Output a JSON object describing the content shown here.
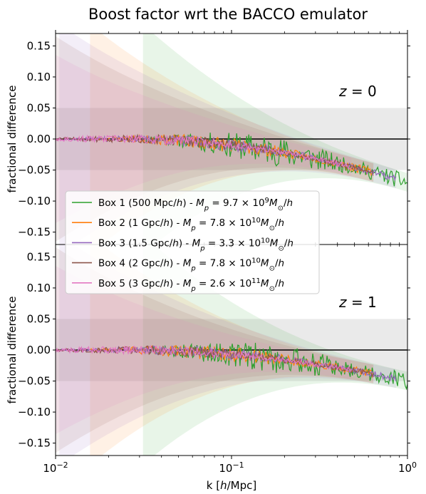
{
  "chart_data": {
    "type": "line",
    "title": "Boost factor wrt the BACCO emulator",
    "xlabel": "k [h/Mpc]",
    "xscale": "log",
    "xlim": [
      0.01,
      1.0
    ],
    "x_ticks": [
      {
        "value": 0.01,
        "base": "10",
        "exp": "−2"
      },
      {
        "value": 0.1,
        "base": "10",
        "exp": "−1"
      },
      {
        "value": 1.0,
        "base": "10",
        "exp": "0"
      }
    ],
    "grid": false,
    "legend": {
      "placement": "center-left, spanning both panels"
    },
    "series": [
      {
        "name": "Box 1 (500 Mpc/h) - M_p = 9.7 × 10^9 M_⊙/h",
        "label_plain": "Box 1 (500 Mpc/",
        "label_unit": "h",
        "label_tail": ") - ",
        "mass_mantissa": "9.7",
        "mass_exp": "9",
        "color": "#2ca02c",
        "kmin": 0.0314,
        "kmax": 1.0,
        "noise": 0.028,
        "seed": 11
      },
      {
        "name": "Box 2 (1 Gpc/h) - M_p = 7.8 × 10^10 M_⊙/h",
        "label_plain": "Box 2 (1 Gpc/",
        "label_unit": "h",
        "label_tail": ") - ",
        "mass_mantissa": "7.8",
        "mass_exp": "10",
        "color": "#ff7f0e",
        "kmin": 0.0157,
        "kmax": 0.64,
        "noise": 0.014,
        "seed": 23
      },
      {
        "name": "Box 3 (1.5 Gpc/h) - M_p = 3.3 × 10^10 M_⊙/h",
        "label_plain": "Box 3 (1.5 Gpc/",
        "label_unit": "h",
        "label_tail": ") - ",
        "mass_mantissa": "3.3",
        "mass_exp": "10",
        "color": "#9467bd",
        "kmin": 0.0105,
        "kmax": 0.86,
        "noise": 0.011,
        "seed": 37
      },
      {
        "name": "Box 4 (2 Gpc/h) - M_p = 7.8 × 10^10 M_⊙/h",
        "label_plain": "Box 4 (2 Gpc/",
        "label_unit": "h",
        "label_tail": ") - ",
        "mass_mantissa": "7.8",
        "mass_exp": "10",
        "color": "#8c564b",
        "kmin": 0.0079,
        "kmax": 0.64,
        "noise": 0.01,
        "seed": 51
      },
      {
        "name": "Box 5 (3 Gpc/h) - M_p = 2.6 × 10^11 M_⊙/h",
        "label_plain": "Box 5 (3 Gpc/",
        "label_unit": "h",
        "label_tail": ") - ",
        "mass_mantissa": "2.6",
        "mass_exp": "11",
        "color": "#e377c2",
        "kmin": 0.0052,
        "kmax": 0.48,
        "noise": 0.009,
        "seed": 67
      }
    ],
    "panels": [
      {
        "ylabel": "fractional difference",
        "z_label": "z = 0",
        "z_value": "0",
        "ylim": [
          -0.17,
          0.17
        ],
        "y_ticks": [
          0.15,
          0.1,
          0.05,
          0.0,
          -0.05,
          -0.1,
          -0.15
        ],
        "y_tick_labels": [
          "0.15",
          "0.10",
          "0.05",
          "0.00",
          "−0.05",
          "−0.10",
          "−0.15"
        ],
        "tolerance_band": [
          -0.05,
          0.05
        ],
        "trend_end": -0.07
      },
      {
        "ylabel": "fractional difference",
        "z_label": "z = 1",
        "z_value": "1",
        "ylim": [
          -0.17,
          0.17
        ],
        "y_ticks": [
          0.15,
          0.1,
          0.05,
          0.0,
          -0.05,
          -0.1,
          -0.15
        ],
        "y_tick_labels": [
          "0.15",
          "0.10",
          "0.05",
          "0.00",
          "−0.05",
          "−0.10",
          "−0.15"
        ],
        "tolerance_band": [
          -0.05,
          0.05
        ],
        "trend_end": -0.05
      }
    ]
  }
}
